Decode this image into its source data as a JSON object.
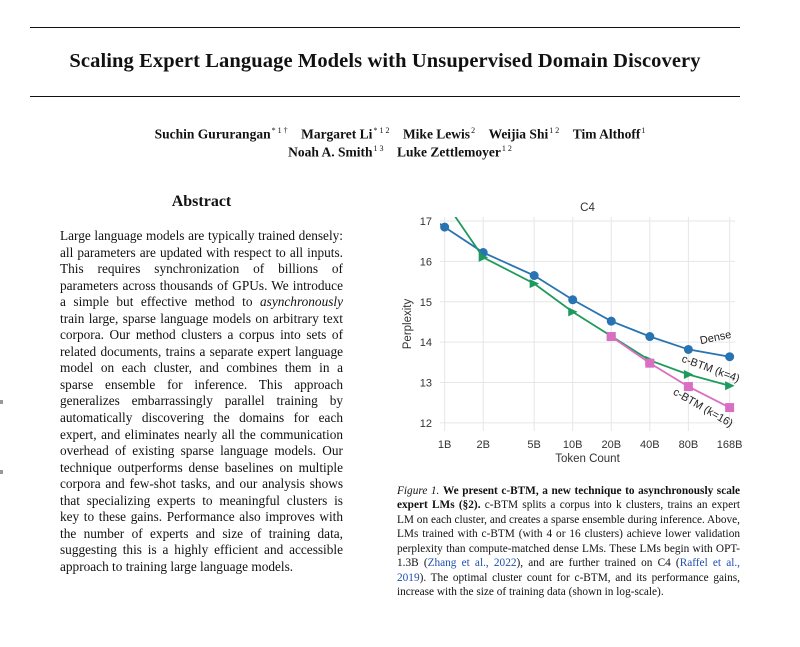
{
  "paper": {
    "title": "Scaling Expert Language Models with Unsupervised Domain Discovery",
    "authors_line1": [
      {
        "name": "Suchin Gururangan",
        "aff": "* 1 †"
      },
      {
        "name": "Margaret Li",
        "aff": "* 1 2"
      },
      {
        "name": "Mike Lewis",
        "aff": "2"
      },
      {
        "name": "Weijia Shi",
        "aff": "1 2"
      },
      {
        "name": "Tim Althoff",
        "aff": "1"
      }
    ],
    "authors_line2": [
      {
        "name": "Noah A. Smith",
        "aff": "1 3"
      },
      {
        "name": "Luke Zettlemoyer",
        "aff": "1 2"
      }
    ]
  },
  "abstract": {
    "heading": "Abstract",
    "text_before_italic": "Large language models are typically trained densely: all parameters are updated with respect to all inputs. This requires synchronization of billions of parameters across thousands of GPUs. We introduce a simple but effective method to ",
    "italic": "asynchronously",
    "text_after_italic": " train large, sparse language models on arbitrary text corpora. Our method clusters a corpus into sets of related documents, trains a separate expert language model on each cluster, and combines them in a sparse ensemble for inference. This approach generalizes embarrassingly parallel training by automatically discovering the domains for each expert, and eliminates nearly all the communication overhead of existing sparse language models. Our technique outperforms dense baselines on multiple corpora and few-shot tasks, and our analysis shows that specializing experts to meaningful clusters is key to these gains. Performance also improves with the number of experts and size of training data, suggesting this is a highly efficient and accessible approach to training large language models."
  },
  "figure": {
    "caption_label": "Figure 1.",
    "caption_bold": "We present c-BTM, a new technique to asynchronously scale expert LMs (§2).",
    "caption_text_1": " c-BTM splits a corpus into k clusters, trains an expert LM on each cluster, and creates a sparse ensemble during inference. Above, LMs trained with c-BTM (with 4 or 16 clusters) achieve lower validation perplexity than compute-matched dense LMs. These LMs begin with OPT-1.3B (",
    "caption_link_1": "Zhang et al., 2022",
    "caption_text_2": "), and are further trained on C4 (",
    "caption_link_2": "Raffel et al., 2019",
    "caption_text_3": "). The optimal cluster count for c-BTM, and its performance gains, increase with the size of training data (shown in log-scale)."
  },
  "chart_data": {
    "type": "line",
    "title": "C4",
    "xlabel": "Token Count",
    "ylabel": "Perplexity",
    "x_scale": "log",
    "x_ticks": [
      {
        "value": 1,
        "label": "1B"
      },
      {
        "value": 2,
        "label": "2B"
      },
      {
        "value": 5,
        "label": "5B"
      },
      {
        "value": 10,
        "label": "10B"
      },
      {
        "value": 20,
        "label": "20B"
      },
      {
        "value": 40,
        "label": "40B"
      },
      {
        "value": 80,
        "label": "80B"
      },
      {
        "value": 168,
        "label": "168B"
      }
    ],
    "y_ticks": [
      12,
      13,
      14,
      15,
      16,
      17
    ],
    "ylim": [
      11.8,
      17.1
    ],
    "grid": true,
    "series": [
      {
        "name": "Dense",
        "color": "#2874b2",
        "marker": "circle",
        "x": [
          1,
          2,
          5,
          10,
          20,
          40,
          80,
          168
        ],
        "y": [
          16.85,
          16.22,
          15.65,
          15.05,
          14.52,
          14.14,
          13.82,
          13.64
        ]
      },
      {
        "name": "c-BTM (k=4)",
        "color": "#1f9a5e",
        "marker": "triangle",
        "x": [
          2,
          5,
          10,
          20,
          40,
          80,
          168
        ],
        "y": [
          16.1,
          15.45,
          14.75,
          14.15,
          13.55,
          13.2,
          12.92
        ]
      },
      {
        "name": "c-BTM (k=16)",
        "color": "#d96fc3",
        "marker": "square",
        "x": [
          20,
          40,
          80,
          168
        ],
        "y": [
          14.14,
          13.48,
          12.9,
          12.38
        ]
      }
    ]
  }
}
